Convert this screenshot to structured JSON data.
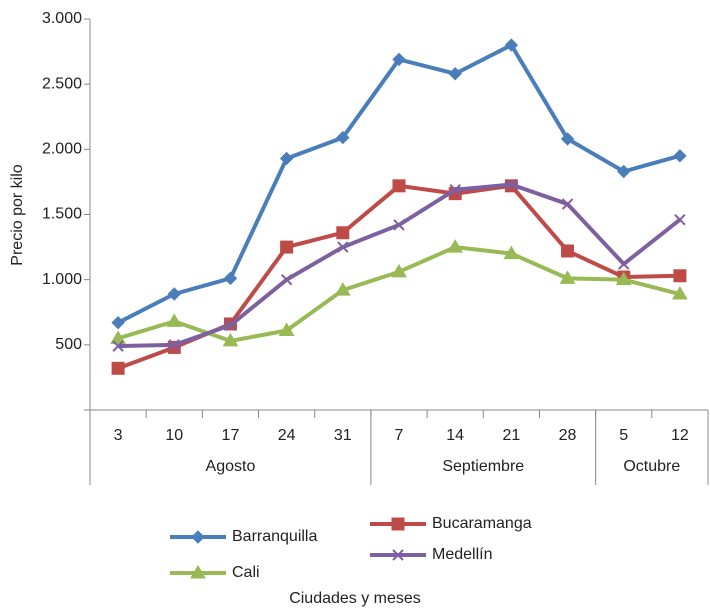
{
  "chart_data": {
    "type": "line",
    "x_label": "Ciudades y meses",
    "y_label": "Precio por kilo",
    "categories": [
      "3",
      "10",
      "17",
      "24",
      "31",
      "7",
      "14",
      "21",
      "28",
      "5",
      "12"
    ],
    "groups": [
      {
        "label": "Agosto",
        "span": 5
      },
      {
        "label": "Septiembre",
        "span": 4
      },
      {
        "label": "Octubre",
        "span": 2
      }
    ],
    "series": [
      {
        "name": "Barranquilla",
        "color": "#4a7ebb",
        "marker": "diamond",
        "values": [
          670,
          890,
          1010,
          1930,
          2090,
          2690,
          2580,
          2800,
          2080,
          1830,
          1950
        ]
      },
      {
        "name": "Bucaramanga",
        "color": "#be4b48",
        "marker": "square",
        "values": [
          320,
          480,
          660,
          1250,
          1360,
          1720,
          1660,
          1720,
          1220,
          1020,
          1030
        ]
      },
      {
        "name": "Cali",
        "color": "#98b954",
        "marker": "triangle",
        "values": [
          550,
          680,
          530,
          610,
          920,
          1060,
          1250,
          1200,
          1010,
          1000,
          890
        ]
      },
      {
        "name": "Medellín",
        "color": "#7d60a0",
        "marker": "x",
        "values": [
          490,
          500,
          650,
          1000,
          1250,
          1420,
          1690,
          1730,
          1580,
          1120,
          1460
        ]
      }
    ],
    "ylim": [
      0,
      3000
    ],
    "yticks": [
      500,
      {
        "value": 1000,
        "label": "1.000"
      },
      {
        "value": 1500,
        "label": "1.500"
      },
      {
        "value": 2000,
        "label": "2.000"
      },
      {
        "value": 2500,
        "label": "2.500"
      },
      {
        "value": 3000,
        "label": "3.000"
      }
    ],
    "grid": false
  }
}
